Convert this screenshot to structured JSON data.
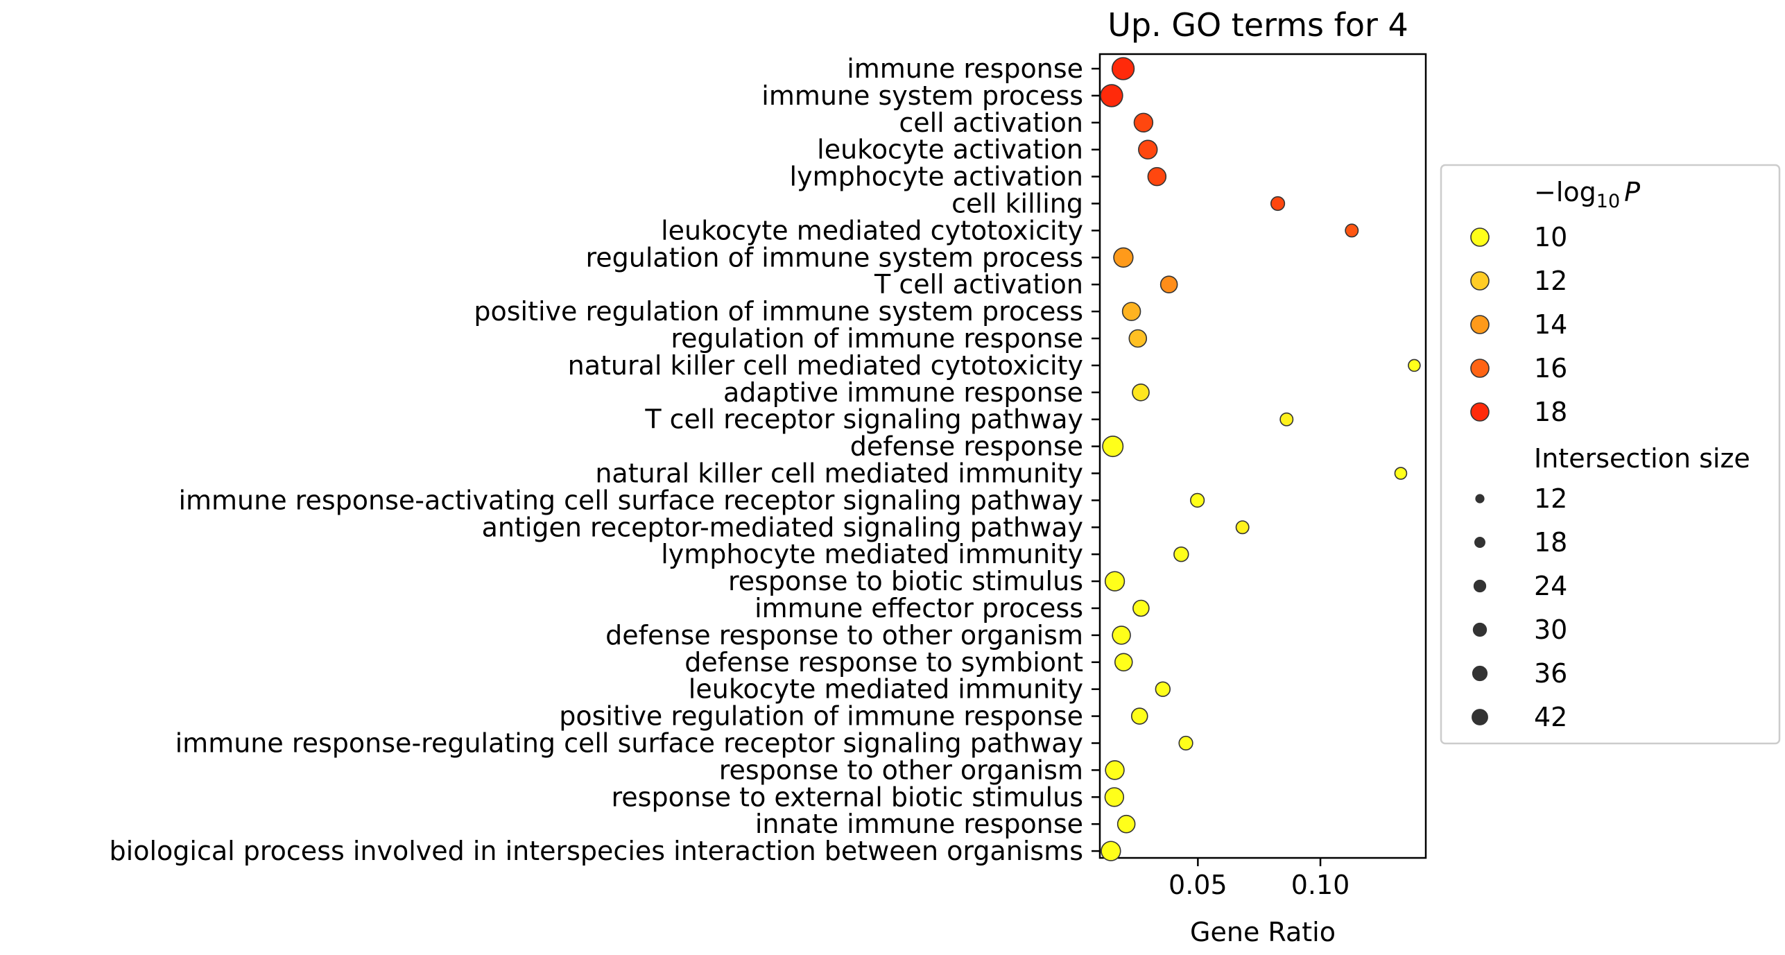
{
  "chart_data": {
    "type": "scatter",
    "title": "Up. GO terms for 4",
    "xlabel": "Gene Ratio",
    "ylabel": "",
    "xlim": [
      0.01,
      0.143
    ],
    "xticks": [
      0.05,
      0.1
    ],
    "xtick_labels": [
      "0.05",
      "0.10"
    ],
    "grid": false,
    "legend_position": "right",
    "color_legend": {
      "title_main": "−log",
      "title_sub": "10",
      "title_var": "P",
      "entries": [
        {
          "label": "10",
          "value": 10,
          "color": "#ffff1a"
        },
        {
          "label": "12",
          "value": 12,
          "color": "#ffcc26"
        },
        {
          "label": "14",
          "value": 14,
          "color": "#ff9a1a"
        },
        {
          "label": "16",
          "value": 16,
          "color": "#ff6414"
        },
        {
          "label": "18",
          "value": 18,
          "color": "#ff2a0a"
        }
      ]
    },
    "size_legend": {
      "title": "Intersection size",
      "entries": [
        {
          "label": "12",
          "value": 12
        },
        {
          "label": "18",
          "value": 18
        },
        {
          "label": "24",
          "value": 24
        },
        {
          "label": "30",
          "value": 30
        },
        {
          "label": "36",
          "value": 36
        },
        {
          "label": "42",
          "value": 42
        }
      ]
    },
    "terms": [
      {
        "term": "immune response",
        "gene_ratio": 0.0195,
        "neg_log10_p": 19.0,
        "intersection_size": 42
      },
      {
        "term": "immune system process",
        "gene_ratio": 0.0148,
        "neg_log10_p": 19.0,
        "intersection_size": 42
      },
      {
        "term": "cell activation",
        "gene_ratio": 0.0278,
        "neg_log10_p": 17.0,
        "intersection_size": 30
      },
      {
        "term": "leukocyte activation",
        "gene_ratio": 0.0296,
        "neg_log10_p": 17.0,
        "intersection_size": 30
      },
      {
        "term": "lymphocyte activation",
        "gene_ratio": 0.0333,
        "neg_log10_p": 17.0,
        "intersection_size": 28
      },
      {
        "term": "cell killing",
        "gene_ratio": 0.0826,
        "neg_log10_p": 17.0,
        "intersection_size": 16
      },
      {
        "term": "leukocyte mediated cytotoxicity",
        "gene_ratio": 0.1128,
        "neg_log10_p": 16.5,
        "intersection_size": 14
      },
      {
        "term": "regulation of immune system process",
        "gene_ratio": 0.0196,
        "neg_log10_p": 14.0,
        "intersection_size": 32
      },
      {
        "term": "T cell activation",
        "gene_ratio": 0.0382,
        "neg_log10_p": 14.5,
        "intersection_size": 24
      },
      {
        "term": "positive regulation of immune system process",
        "gene_ratio": 0.0229,
        "neg_log10_p": 13.0,
        "intersection_size": 28
      },
      {
        "term": "regulation of immune response",
        "gene_ratio": 0.0255,
        "neg_log10_p": 12.5,
        "intersection_size": 26
      },
      {
        "term": "natural killer cell mediated cytotoxicity",
        "gene_ratio": 0.1383,
        "neg_log10_p": 10.0,
        "intersection_size": 12
      },
      {
        "term": "adaptive immune response",
        "gene_ratio": 0.0267,
        "neg_log10_p": 11.0,
        "intersection_size": 24
      },
      {
        "term": "T cell receptor signaling pathway",
        "gene_ratio": 0.0862,
        "neg_log10_p": 10.5,
        "intersection_size": 14
      },
      {
        "term": "defense response",
        "gene_ratio": 0.0153,
        "neg_log10_p": 10.0,
        "intersection_size": 36
      },
      {
        "term": "natural killer cell mediated immunity",
        "gene_ratio": 0.1328,
        "neg_log10_p": 10.0,
        "intersection_size": 12
      },
      {
        "term": "immune response-activating cell surface receptor signaling pathway",
        "gene_ratio": 0.0498,
        "neg_log10_p": 10.0,
        "intersection_size": 16
      },
      {
        "term": "antigen receptor-mediated signaling pathway",
        "gene_ratio": 0.0682,
        "neg_log10_p": 10.5,
        "intersection_size": 14
      },
      {
        "term": "lymphocyte mediated immunity",
        "gene_ratio": 0.0432,
        "neg_log10_p": 10.0,
        "intersection_size": 18
      },
      {
        "term": "response to biotic stimulus",
        "gene_ratio": 0.0161,
        "neg_log10_p": 10.0,
        "intersection_size": 32
      },
      {
        "term": "immune effector process",
        "gene_ratio": 0.0268,
        "neg_log10_p": 10.0,
        "intersection_size": 22
      },
      {
        "term": "defense response to other organism",
        "gene_ratio": 0.0188,
        "neg_log10_p": 10.0,
        "intersection_size": 28
      },
      {
        "term": "defense response to symbiont",
        "gene_ratio": 0.0197,
        "neg_log10_p": 10.0,
        "intersection_size": 26
      },
      {
        "term": "leukocyte mediated immunity",
        "gene_ratio": 0.0357,
        "neg_log10_p": 10.0,
        "intersection_size": 18
      },
      {
        "term": "positive regulation of immune response",
        "gene_ratio": 0.0262,
        "neg_log10_p": 10.0,
        "intersection_size": 22
      },
      {
        "term": "immune response-regulating cell surface receptor signaling pathway",
        "gene_ratio": 0.0451,
        "neg_log10_p": 10.0,
        "intersection_size": 16
      },
      {
        "term": "response to other organism",
        "gene_ratio": 0.0161,
        "neg_log10_p": 10.0,
        "intersection_size": 30
      },
      {
        "term": "response to external biotic stimulus",
        "gene_ratio": 0.0159,
        "neg_log10_p": 10.0,
        "intersection_size": 30
      },
      {
        "term": "innate immune response",
        "gene_ratio": 0.0208,
        "neg_log10_p": 10.0,
        "intersection_size": 26
      },
      {
        "term": "biological process involved in interspecies interaction between organisms",
        "gene_ratio": 0.0145,
        "neg_log10_p": 10.0,
        "intersection_size": 32
      }
    ]
  }
}
